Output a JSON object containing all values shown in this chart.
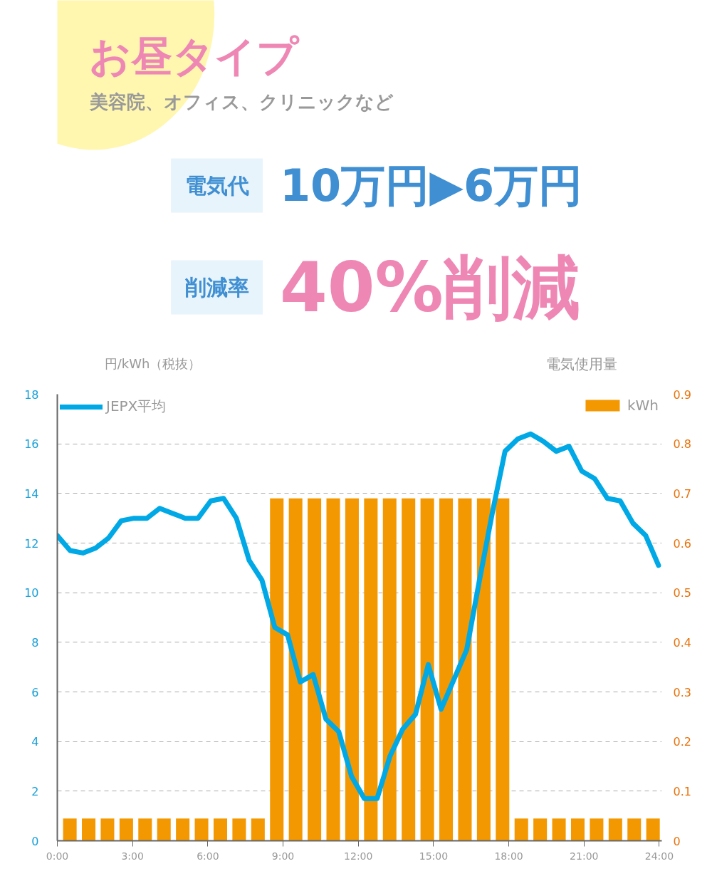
{
  "chart_data": {
    "type": "bar",
    "title": "お昼タイプ",
    "subtitle": "美容院、オフィス、クリニックなど",
    "annotations": [
      "電気代",
      "10万円▶6万円",
      "削減率",
      "40%削減"
    ],
    "ylabel": "円/kWh（税抜）",
    "y2label": "電気使用量",
    "xlim": [
      0,
      24.1
    ],
    "xticks": [
      {
        "value": 0,
        "label": "0:00"
      },
      {
        "value": 3,
        "label": "3:00"
      },
      {
        "value": 6,
        "label": "6:00"
      },
      {
        "value": 9,
        "label": "9:00"
      },
      {
        "value": 12,
        "label": "12:00"
      },
      {
        "value": 15,
        "label": "15:00"
      },
      {
        "value": 18,
        "label": "18:00"
      },
      {
        "value": 21,
        "label": "21:00"
      },
      {
        "value": 24,
        "label": "24:00"
      }
    ],
    "ylim": [
      0,
      18
    ],
    "yticks": [
      0,
      2,
      4,
      6,
      8,
      10,
      12,
      14,
      16,
      18
    ],
    "y2lim": [
      0,
      0.9
    ],
    "y2ticks": [
      0,
      0.1,
      0.2,
      0.3,
      0.4,
      0.5,
      0.6,
      0.7,
      0.8,
      0.9
    ],
    "grid": "y",
    "legend": "top",
    "series": [
      {
        "name": "kWh",
        "type": "bar",
        "axis": "y2",
        "color": "#f39800",
        "x": [
          0.5,
          1.25,
          2,
          2.75,
          3.5,
          4.25,
          5,
          5.75,
          6.5,
          7.25,
          8,
          8.75,
          9.5,
          10.25,
          11,
          11.75,
          12.5,
          13.25,
          14,
          14.75,
          15.5,
          16.25,
          17,
          17.75,
          18.5,
          19.25,
          20,
          20.75,
          21.5,
          22.25,
          23,
          23.75
        ],
        "values": [
          0.045,
          0.045,
          0.045,
          0.045,
          0.045,
          0.045,
          0.045,
          0.045,
          0.045,
          0.045,
          0.045,
          0.69,
          0.69,
          0.69,
          0.69,
          0.69,
          0.69,
          0.69,
          0.69,
          0.69,
          0.69,
          0.69,
          0.69,
          0.69,
          0.045,
          0.045,
          0.045,
          0.045,
          0.045,
          0.045,
          0.045,
          0.045
        ]
      },
      {
        "name": "JEPX平均",
        "type": "line",
        "color": "#00a9e6",
        "x": [
          0,
          0.51,
          1.02,
          1.53,
          2.04,
          2.55,
          3.06,
          3.57,
          4.08,
          4.59,
          5.1,
          5.61,
          6.12,
          6.63,
          7.14,
          7.65,
          8.16,
          8.67,
          9.18,
          9.69,
          10.2,
          10.71,
          11.22,
          11.73,
          12.24,
          12.75,
          13.26,
          13.77,
          14.28,
          14.79,
          15.3,
          15.81,
          16.32,
          16.83,
          17.34,
          17.85,
          18.36,
          18.87,
          19.38,
          19.89,
          20.4,
          20.91,
          21.42,
          21.93,
          22.44,
          22.95,
          23.46,
          23.97
        ],
        "values": [
          12.3,
          11.7,
          11.6,
          11.8,
          12.2,
          12.9,
          13.0,
          13.0,
          13.4,
          13.2,
          13.0,
          13.0,
          13.7,
          13.8,
          13.0,
          11.3,
          10.5,
          8.6,
          8.3,
          6.4,
          6.7,
          4.9,
          4.4,
          2.6,
          1.7,
          1.7,
          3.4,
          4.5,
          5.1,
          7.1,
          5.3,
          6.5,
          7.7,
          10.5,
          13.2,
          15.7,
          16.2,
          16.4,
          16.1,
          15.7,
          15.9,
          14.9,
          14.6,
          13.8,
          13.7,
          12.8,
          12.3,
          11.1
        ]
      }
    ]
  }
}
